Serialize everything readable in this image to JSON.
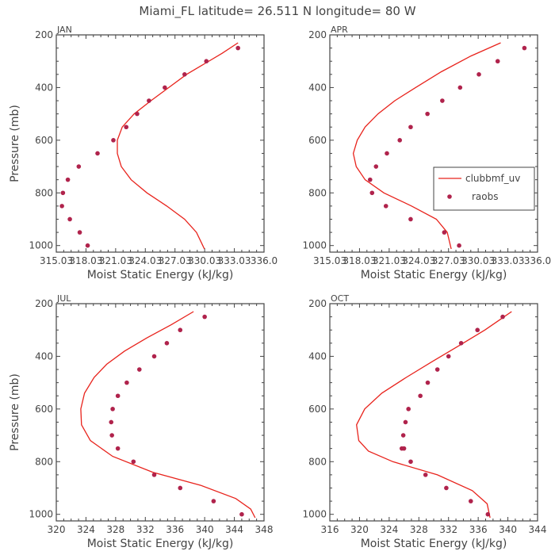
{
  "title": "Miami_FL   latitude= 26.511 N longitude= 80 W",
  "legend": {
    "model_label": "clubbmf_uv",
    "obs_label": "raobs",
    "model_color": "#e8231c",
    "obs_color": "#b0234c"
  },
  "chart_data": [
    {
      "type": "line",
      "panel_title": "JAN",
      "xlabel": "Moist Static Energy (kJ/kg)",
      "ylabel": "Pressure (mb)",
      "xlim": [
        315.03,
        336.03
      ],
      "ylim": [
        1025,
        200
      ],
      "xticks": [
        315.03,
        318.03,
        321.03,
        324.03,
        327.03,
        330.03,
        333.03,
        336.03
      ],
      "xtick_labels": [
        "315.03",
        "318.03",
        "321.03",
        "324.03",
        "327.03",
        "330.03",
        "333.03",
        "336.0"
      ],
      "yticks": [
        200,
        400,
        600,
        800,
        1000
      ],
      "model": {
        "name": "clubbmf_uv",
        "x": [
          333.4,
          331.8,
          330.0,
          328.2,
          326.4,
          324.6,
          322.9,
          321.7,
          321.2,
          321.2,
          321.6,
          322.6,
          324.2,
          326.2,
          328.0,
          329.2,
          330.0
        ],
        "y": [
          230,
          270,
          310,
          350,
          400,
          450,
          500,
          550,
          600,
          650,
          700,
          750,
          800,
          850,
          900,
          950,
          1013
        ]
      },
      "obs": {
        "name": "raobs",
        "x": [
          333.4,
          330.2,
          328.0,
          326.0,
          324.4,
          323.2,
          322.1,
          320.8,
          319.2,
          317.3,
          316.2,
          315.7,
          315.6,
          316.4,
          317.4,
          318.2
        ],
        "y": [
          250,
          300,
          350,
          400,
          450,
          500,
          550,
          600,
          650,
          700,
          750,
          800,
          850,
          900,
          950,
          1000
        ]
      }
    },
    {
      "type": "line",
      "panel_title": "APR",
      "xlabel": "Moist Static Energy (kJ/kg)",
      "ylabel": "",
      "xlim": [
        315.03,
        336.03
      ],
      "ylim": [
        1025,
        200
      ],
      "xticks": [
        315.03,
        318.03,
        321.03,
        324.03,
        327.03,
        330.03,
        333.03,
        336.03
      ],
      "xtick_labels": [
        "315.03",
        "318.03",
        "321.03",
        "324.03",
        "327.03",
        "330.03",
        "333.03",
        "336.0"
      ],
      "yticks": [
        200,
        400,
        600,
        800,
        1000
      ],
      "model": {
        "name": "clubbmf_uv",
        "x": [
          332.3,
          329.3,
          326.3,
          323.7,
          321.6,
          319.9,
          318.6,
          317.8,
          317.4,
          317.7,
          318.6,
          320.5,
          323.3,
          325.8,
          326.9,
          327.3
        ],
        "y": [
          230,
          280,
          340,
          400,
          450,
          500,
          550,
          600,
          650,
          700,
          750,
          800,
          850,
          900,
          950,
          1013
        ]
      },
      "obs": {
        "name": "raobs",
        "x": [
          334.7,
          332.0,
          330.1,
          328.2,
          326.4,
          324.9,
          323.2,
          322.1,
          320.8,
          319.7,
          319.1,
          319.3,
          320.7,
          323.2,
          326.6,
          328.1
        ],
        "y": [
          250,
          300,
          350,
          400,
          450,
          500,
          550,
          600,
          650,
          700,
          750,
          800,
          850,
          900,
          950,
          1000
        ]
      }
    },
    {
      "type": "line",
      "panel_title": "JUL",
      "xlabel": "Moist Static Energy (kJ/kg)",
      "ylabel": "Pressure (mb)",
      "xlim": [
        320,
        348
      ],
      "ylim": [
        1025,
        200
      ],
      "xticks": [
        320,
        324,
        328,
        332,
        336,
        340,
        344,
        348
      ],
      "xtick_labels": [
        "320",
        "324",
        "328",
        "332",
        "336",
        "340",
        "344",
        "348"
      ],
      "yticks": [
        200,
        400,
        600,
        800,
        1000
      ],
      "model": {
        "name": "clubbmf_uv",
        "x": [
          338.5,
          335.5,
          332.2,
          329.2,
          326.8,
          325.1,
          323.8,
          323.3,
          323.4,
          324.6,
          327.6,
          333.0,
          339.5,
          344.2,
          346.2,
          346.8
        ],
        "y": [
          230,
          280,
          330,
          380,
          430,
          480,
          540,
          600,
          660,
          720,
          780,
          840,
          890,
          940,
          980,
          1013
        ]
      },
      "obs": {
        "name": "raobs",
        "x": [
          340.0,
          336.7,
          334.9,
          333.2,
          331.2,
          329.5,
          328.3,
          327.6,
          327.4,
          327.5,
          328.3,
          330.4,
          333.2,
          336.7,
          341.2,
          345.0
        ],
        "y": [
          250,
          300,
          350,
          400,
          450,
          500,
          550,
          600,
          650,
          700,
          750,
          800,
          850,
          900,
          950,
          1000
        ]
      }
    },
    {
      "type": "line",
      "panel_title": "OCT",
      "xlabel": "Moist Static Energy (kJ/kg)",
      "ylabel": "",
      "xlim": [
        316,
        344
      ],
      "ylim": [
        1025,
        200
      ],
      "xticks": [
        316,
        320,
        324,
        328,
        332,
        336,
        340,
        344
      ],
      "xtick_labels": [
        "316",
        "320",
        "324",
        "328",
        "332",
        "336",
        "340",
        "344"
      ],
      "yticks": [
        200,
        400,
        600,
        800,
        1000
      ],
      "model": {
        "name": "clubbmf_uv",
        "x": [
          340.5,
          336.9,
          333.4,
          329.8,
          326.3,
          323.0,
          320.7,
          319.6,
          319.9,
          321.2,
          324.5,
          330.5,
          335.2,
          337.2,
          337.6
        ],
        "y": [
          230,
          300,
          360,
          420,
          480,
          540,
          600,
          660,
          720,
          760,
          800,
          850,
          910,
          960,
          1013
        ]
      },
      "obs": {
        "name": "raobs",
        "x": [
          339.3,
          335.9,
          333.7,
          332.0,
          330.5,
          329.2,
          328.2,
          326.6,
          326.2,
          325.9,
          325.7,
          326.0,
          326.9,
          328.9,
          331.7,
          335.0,
          337.3
        ],
        "y": [
          250,
          300,
          350,
          400,
          450,
          500,
          550,
          600,
          650,
          700,
          750,
          750,
          800,
          850,
          900,
          950,
          1000
        ]
      }
    }
  ]
}
